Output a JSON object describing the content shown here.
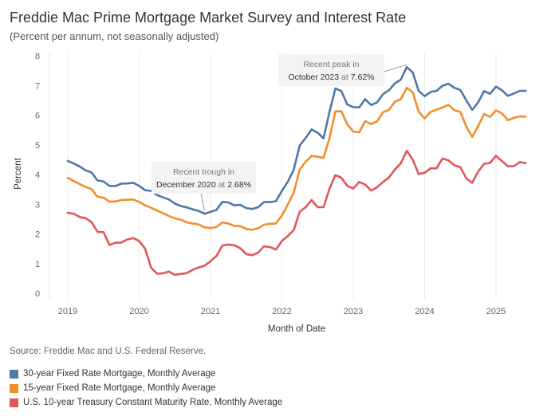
{
  "header": {
    "title": "Freddie Mac Prime Mortgage Market Survey and Interest Rate",
    "subtitle": "(Percent per annum, not seasonally adjusted)"
  },
  "source": "Source: Freddie Mac and U.S. Federal Reserve.",
  "chart_data": {
    "type": "line",
    "xlabel": "Month of Date",
    "ylabel": "Percent",
    "ylim": [
      0,
      8
    ],
    "yticks": [
      0,
      1,
      2,
      3,
      4,
      5,
      6,
      7,
      8
    ],
    "xticks": [
      "2019",
      "2020",
      "2021",
      "2022",
      "2023",
      "2024",
      "2025"
    ],
    "x_start": "2019-01",
    "grid": "vertical",
    "legend_placement": "bottom",
    "series": [
      {
        "name": "30-year Fixed Rate Mortgage, Monthly Average",
        "color": "#4e79a7",
        "values": [
          4.46,
          4.37,
          4.27,
          4.14,
          4.07,
          3.8,
          3.77,
          3.62,
          3.61,
          3.69,
          3.7,
          3.72,
          3.62,
          3.47,
          3.45,
          3.31,
          3.23,
          3.16,
          3.02,
          2.94,
          2.89,
          2.83,
          2.77,
          2.68,
          2.74,
          2.81,
          3.08,
          3.06,
          2.96,
          2.98,
          2.87,
          2.84,
          2.9,
          3.07,
          3.07,
          3.1,
          3.45,
          3.76,
          4.17,
          4.98,
          5.23,
          5.52,
          5.41,
          5.22,
          6.11,
          6.9,
          6.81,
          6.36,
          6.27,
          6.26,
          6.54,
          6.34,
          6.43,
          6.71,
          6.84,
          7.07,
          7.2,
          7.62,
          7.44,
          6.82,
          6.64,
          6.78,
          6.82,
          6.99,
          7.06,
          6.92,
          6.85,
          6.5,
          6.18,
          6.43,
          6.81,
          6.72,
          6.96,
          6.84,
          6.65,
          6.73,
          6.82,
          6.82
        ],
        "peak_label_index": 57
      },
      {
        "name": "15-year Fixed Rate Mortgage, Monthly Average",
        "color": "#f28e2b",
        "values": [
          3.89,
          3.78,
          3.68,
          3.58,
          3.51,
          3.25,
          3.22,
          3.09,
          3.09,
          3.14,
          3.15,
          3.16,
          3.08,
          2.96,
          2.88,
          2.79,
          2.7,
          2.6,
          2.52,
          2.48,
          2.39,
          2.35,
          2.32,
          2.22,
          2.2,
          2.23,
          2.39,
          2.35,
          2.27,
          2.26,
          2.17,
          2.14,
          2.19,
          2.31,
          2.34,
          2.35,
          2.62,
          2.99,
          3.39,
          4.17,
          4.43,
          4.63,
          4.6,
          4.56,
          5.23,
          6.13,
          6.13,
          5.69,
          5.45,
          5.42,
          5.8,
          5.7,
          5.79,
          6.1,
          6.18,
          6.45,
          6.54,
          6.92,
          6.77,
          6.12,
          5.89,
          6.11,
          6.18,
          6.26,
          6.35,
          6.17,
          6.11,
          5.62,
          5.27,
          5.63,
          6.04,
          5.94,
          6.16,
          6.06,
          5.83,
          5.91,
          5.96,
          5.95
        ]
      },
      {
        "name": "U.S. 10-year Treasury Constant Maturity Rate, Monthly Average",
        "color": "#e15759",
        "values": [
          2.71,
          2.68,
          2.57,
          2.53,
          2.4,
          2.07,
          2.06,
          1.63,
          1.7,
          1.71,
          1.81,
          1.86,
          1.76,
          1.5,
          0.87,
          0.66,
          0.67,
          0.73,
          0.62,
          0.65,
          0.68,
          0.79,
          0.87,
          0.93,
          1.08,
          1.26,
          1.61,
          1.64,
          1.62,
          1.52,
          1.32,
          1.28,
          1.37,
          1.58,
          1.56,
          1.47,
          1.76,
          1.93,
          2.13,
          2.75,
          2.9,
          3.14,
          2.9,
          2.9,
          3.52,
          3.98,
          3.89,
          3.62,
          3.53,
          3.75,
          3.66,
          3.46,
          3.57,
          3.75,
          3.9,
          4.17,
          4.38,
          4.8,
          4.5,
          4.02,
          4.06,
          4.21,
          4.21,
          4.54,
          4.48,
          4.31,
          4.25,
          3.87,
          3.72,
          4.1,
          4.36,
          4.39,
          4.63,
          4.45,
          4.28,
          4.28,
          4.42,
          4.38
        ],
        "trough_label_index": 23
      }
    ],
    "annotations": {
      "trough": {
        "line1": "Recent trough in",
        "line2a": "December 2020",
        "line2b": " at ",
        "line2c": "2.68%"
      },
      "peak": {
        "line1": "Recent peak in",
        "line2a": "October 2023",
        "line2b": " at ",
        "line2c": "7.62%"
      }
    }
  }
}
